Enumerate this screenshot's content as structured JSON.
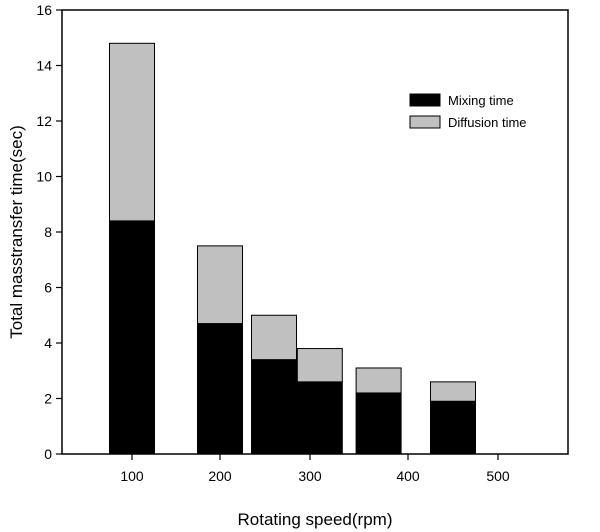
{
  "chart_data": {
    "type": "bar",
    "stacked": true,
    "categories": [
      "100",
      "200",
      "300",
      "400",
      "500"
    ],
    "x": [
      100,
      200,
      260,
      310,
      370,
      450
    ],
    "x_ticks": [
      100,
      200,
      300,
      400,
      500
    ],
    "series": [
      {
        "name": "Mixing time",
        "values": [
          8.4,
          4.7,
          3.4,
          2.6,
          2.2,
          1.9
        ],
        "color": "#000000"
      },
      {
        "name": "Diffusion time",
        "values": [
          6.4,
          2.8,
          1.6,
          1.2,
          0.9,
          0.7
        ],
        "color": "#c0c0c0"
      }
    ],
    "title": "",
    "xlabel": "Rotating speed(rpm)",
    "ylabel": "Total masstransfer time(sec)",
    "ylim": [
      0,
      16
    ],
    "y_ticks": [
      0,
      2,
      4,
      6,
      8,
      10,
      12,
      14,
      16
    ],
    "grid": false,
    "legend_position": "top-right"
  }
}
